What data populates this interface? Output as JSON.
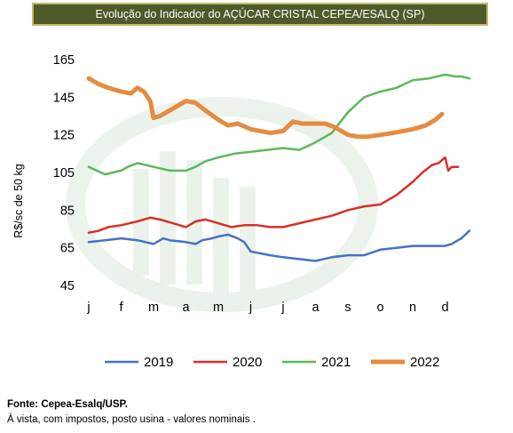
{
  "chart_data": {
    "type": "line",
    "title": "Evolução do Indicador do AÇÚCAR CRISTAL CEPEA/ESALQ (SP)",
    "xlabel": "",
    "ylabel": "R$/sc de 50 kg",
    "ylim": [
      45,
      165
    ],
    "yticks": [
      45,
      65,
      85,
      105,
      125,
      145,
      165
    ],
    "x_categories": [
      "j",
      "f",
      "m",
      "a",
      "m",
      "j",
      "j",
      "a",
      "s",
      "o",
      "n",
      "d"
    ],
    "grid": false,
    "legend_position": "bottom",
    "series": [
      {
        "name": "2019",
        "color": "#4472c4",
        "x": [
          0,
          0.5,
          1,
          1.5,
          2,
          2.3,
          2.5,
          3,
          3.3,
          3.5,
          3.8,
          4,
          4.3,
          4.6,
          4.8,
          5,
          5.3,
          5.6,
          6,
          6.5,
          7,
          7.5,
          8,
          8.5,
          9,
          9.5,
          10,
          10.5,
          11,
          11.2,
          11.5,
          11.75
        ],
        "values": [
          68,
          69,
          70,
          69,
          67,
          70,
          69,
          68,
          67,
          69,
          70,
          71,
          72,
          70,
          68,
          63,
          62,
          61,
          60,
          59,
          58,
          60,
          61,
          61,
          64,
          65,
          66,
          66,
          66,
          67,
          70,
          74
        ]
      },
      {
        "name": "2020",
        "color": "#d73027",
        "x": [
          0,
          0.3,
          0.6,
          1,
          1.5,
          1.9,
          2.2,
          2.6,
          3,
          3.3,
          3.6,
          4,
          4.4,
          4.8,
          5.2,
          5.6,
          6,
          6.5,
          7,
          7.5,
          8,
          8.5,
          9,
          9.5,
          10,
          10.3,
          10.6,
          10.8,
          11,
          11.1,
          11.2,
          11.4
        ],
        "values": [
          73,
          74,
          76,
          77,
          79,
          81,
          80,
          78,
          76,
          79,
          80,
          78,
          76,
          77,
          77,
          76,
          76,
          78,
          80,
          82,
          85,
          87,
          88,
          93,
          100,
          105,
          109,
          110,
          113,
          106,
          108,
          108
        ]
      },
      {
        "name": "2021",
        "color": "#5cb85c",
        "x": [
          0,
          0.5,
          1,
          1.2,
          1.5,
          2,
          2.5,
          3,
          3.3,
          3.6,
          4,
          4.5,
          5,
          5.5,
          6,
          6.5,
          7,
          7.5,
          8,
          8.5,
          9,
          9.5,
          10,
          10.5,
          11,
          11.3,
          11.5,
          11.75
        ],
        "values": [
          108,
          104,
          106,
          108,
          110,
          108,
          106,
          106,
          108,
          111,
          113,
          115,
          116,
          117,
          118,
          117,
          121,
          126,
          137,
          145,
          148,
          150,
          154,
          155,
          157,
          156,
          156,
          155
        ]
      },
      {
        "name": "2022",
        "color": "#e58b42",
        "x": [
          0,
          0.3,
          0.6,
          1,
          1.3,
          1.5,
          1.7,
          1.9,
          2,
          2.2,
          2.5,
          2.8,
          3,
          3.3,
          3.6,
          4,
          4.3,
          4.6,
          5,
          5.3,
          5.6,
          6,
          6.3,
          6.6,
          7,
          7.3,
          7.6,
          8,
          8.3,
          8.6,
          9,
          9.4,
          10,
          10.4,
          10.7,
          10.9
        ],
        "values": [
          155,
          152,
          150,
          148,
          147,
          150,
          148,
          143,
          134,
          135,
          138,
          141,
          143,
          142,
          138,
          133,
          130,
          131,
          128,
          127,
          126,
          127,
          132,
          131,
          131,
          131,
          129,
          125,
          124,
          124,
          125,
          126,
          128,
          130,
          133,
          136
        ]
      }
    ]
  },
  "footer": {
    "source": "Fonte: Cepea-Esalq/USP.",
    "note": "À vista, com impostos, posto usina - valores nominais ."
  }
}
